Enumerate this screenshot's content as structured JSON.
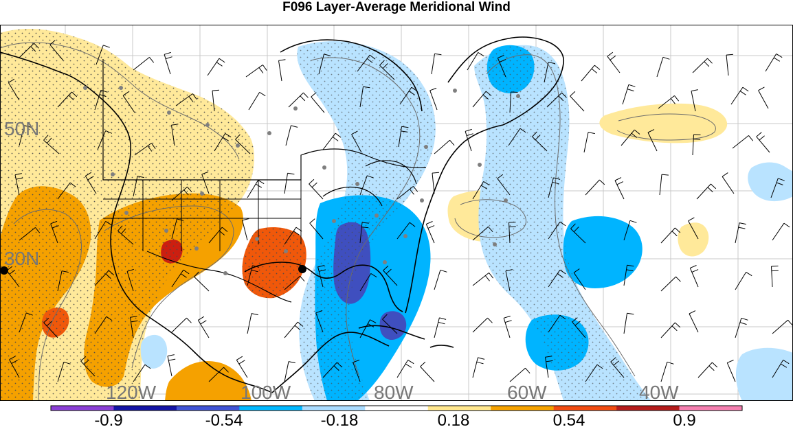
{
  "title": "F096 Layer-Average Meridional Wind",
  "map": {
    "latitude_labels": [
      "50N",
      "30N"
    ],
    "longitude_labels": [
      "120W",
      "100W",
      "80W",
      "60W",
      "40W"
    ],
    "colors": {
      "negative_strong": "#3f4fbf",
      "negative_moderate": "#00b4ff",
      "negative_weak": "#b9e3ff",
      "neutral": "#ffffff",
      "positive_weak": "#ffe99a",
      "positive_moderate": "#f5a100",
      "positive_strong": "#f0580a",
      "positive_extreme": "#cc1f10",
      "grid": "#c8c8c8",
      "coast": "#000000"
    }
  },
  "colorbar": {
    "levels": [
      "-0.9",
      "-0.54",
      "-0.18",
      "0.18",
      "0.54",
      "0.9"
    ],
    "colors": [
      "#8b3fd6",
      "#1414a6",
      "#4154d6",
      "#00b8ff",
      "#aadcff",
      "#ffffff",
      "#ffe78e",
      "#f5a200",
      "#f24c12",
      "#b51c1c",
      "#f47fb0"
    ]
  }
}
